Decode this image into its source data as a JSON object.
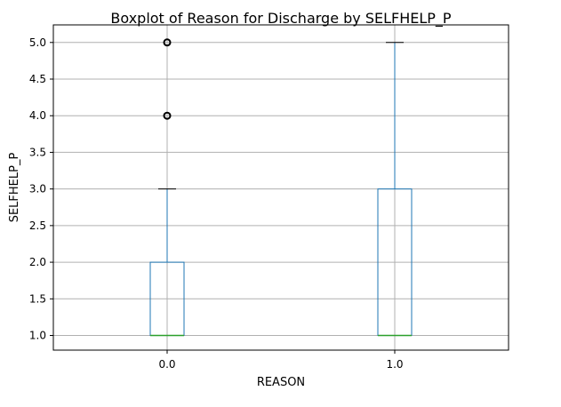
{
  "chart_data": {
    "type": "boxplot",
    "title": "Boxplot of Reason for Discharge by SELFHELP_P",
    "xlabel": "REASON",
    "ylabel": "SELFHELP_P",
    "categories": [
      "0.0",
      "1.0"
    ],
    "ylim": [
      0.8,
      5.24
    ],
    "yticks": [
      "1.0",
      "1.5",
      "2.0",
      "2.5",
      "3.0",
      "3.5",
      "4.0",
      "4.5",
      "5.0"
    ],
    "grid": true,
    "boxes": [
      {
        "category": "0.0",
        "whisker_low": 1.0,
        "q1": 1.0,
        "median": 1.0,
        "q3": 2.0,
        "whisker_high": 3.0,
        "outliers": [
          4.0,
          5.0
        ]
      },
      {
        "category": "1.0",
        "whisker_low": 1.0,
        "q1": 1.0,
        "median": 1.0,
        "q3": 3.0,
        "whisker_high": 5.0,
        "outliers": []
      }
    ],
    "colors": {
      "box": "#1f77b4",
      "median": "#2ca02c",
      "whisker_cap": "#000000",
      "grid": "#b0b0b0",
      "outlier": "#000000"
    }
  }
}
